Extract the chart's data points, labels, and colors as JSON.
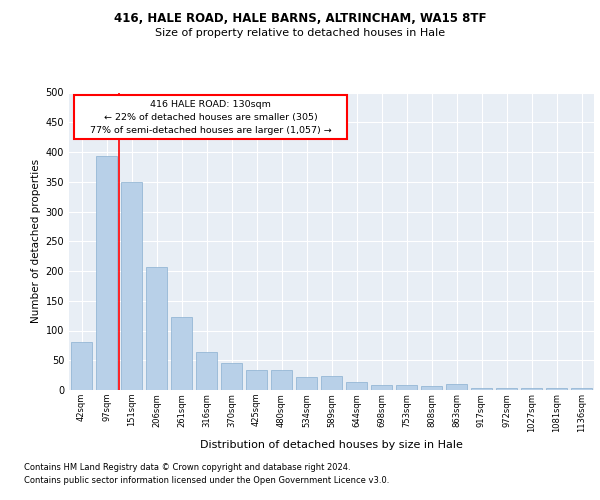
{
  "title1": "416, HALE ROAD, HALE BARNS, ALTRINCHAM, WA15 8TF",
  "title2": "Size of property relative to detached houses in Hale",
  "xlabel": "Distribution of detached houses by size in Hale",
  "ylabel": "Number of detached properties",
  "categories": [
    "42sqm",
    "97sqm",
    "151sqm",
    "206sqm",
    "261sqm",
    "316sqm",
    "370sqm",
    "425sqm",
    "480sqm",
    "534sqm",
    "589sqm",
    "644sqm",
    "698sqm",
    "753sqm",
    "808sqm",
    "863sqm",
    "917sqm",
    "972sqm",
    "1027sqm",
    "1081sqm",
    "1136sqm"
  ],
  "values": [
    80,
    393,
    350,
    206,
    122,
    64,
    45,
    33,
    33,
    22,
    23,
    14,
    9,
    9,
    7,
    10,
    4,
    3,
    3,
    3,
    4
  ],
  "bar_color": "#b8d0e8",
  "bar_edge_color": "#8ab0d0",
  "vline_x": 1.5,
  "vline_color": "red",
  "annotation_title": "416 HALE ROAD: 130sqm",
  "annotation_line1": "← 22% of detached houses are smaller (305)",
  "annotation_line2": "77% of semi-detached houses are larger (1,057) →",
  "footer1": "Contains HM Land Registry data © Crown copyright and database right 2024.",
  "footer2": "Contains public sector information licensed under the Open Government Licence v3.0.",
  "ylim": [
    0,
    500
  ],
  "yticks": [
    0,
    50,
    100,
    150,
    200,
    250,
    300,
    350,
    400,
    450,
    500
  ],
  "plot_bg_color": "#e8eef5"
}
